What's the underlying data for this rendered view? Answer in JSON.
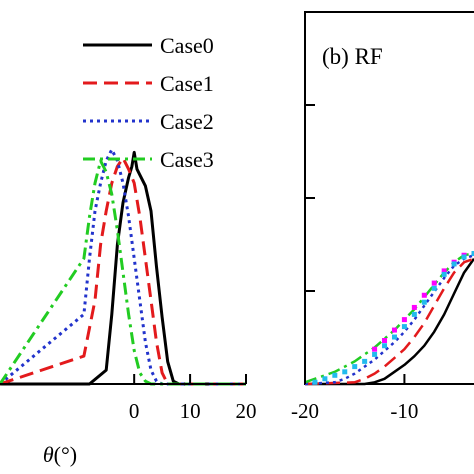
{
  "chart_data": [
    {
      "panel": "a",
      "type": "line",
      "xlabel_symbol": "θ",
      "xlabel_unit": "(°)",
      "xlim": [
        -24,
        20
      ],
      "ylim": [
        0,
        1
      ],
      "x_ticks": [
        "0",
        "10",
        "20"
      ],
      "grid": false,
      "legend_placement": "top-right",
      "series": [
        {
          "name": "Case0",
          "color": "#000000",
          "dash": "solid",
          "x": [
            -24,
            -8,
            -5,
            -4,
            -3,
            -2,
            -1,
            -0.4,
            0,
            0.5,
            1,
            2,
            3,
            4,
            5,
            6,
            7,
            8,
            20
          ],
          "y": [
            0,
            0.0,
            0.05,
            0.25,
            0.5,
            0.65,
            0.74,
            0.78,
            0.83,
            0.77,
            0.75,
            0.71,
            0.62,
            0.42,
            0.24,
            0.08,
            0.01,
            0,
            0
          ]
        },
        {
          "name": "Case1",
          "color": "#e31a1c",
          "dash": "dashed",
          "x": [
            -24,
            -9,
            -7,
            -6,
            -5,
            -4,
            -3,
            -2,
            -1,
            0,
            1,
            2,
            3,
            4,
            5,
            6,
            20
          ],
          "y": [
            0,
            0.1,
            0.3,
            0.5,
            0.62,
            0.72,
            0.78,
            0.81,
            0.77,
            0.72,
            0.6,
            0.45,
            0.3,
            0.15,
            0.04,
            0,
            0
          ]
        },
        {
          "name": "Case2",
          "color": "#2233cc",
          "dash": "dotted",
          "x": [
            -24,
            -9,
            -8,
            -7,
            -6,
            -5,
            -4,
            -3,
            -2,
            -1,
            0,
            1,
            2,
            3,
            4,
            5,
            20
          ],
          "y": [
            0,
            0.25,
            0.45,
            0.62,
            0.72,
            0.8,
            0.84,
            0.8,
            0.72,
            0.6,
            0.45,
            0.3,
            0.15,
            0.05,
            0.01,
            0,
            0
          ]
        },
        {
          "name": "Case3",
          "color": "#22cc22",
          "dash": "dashdot",
          "x": [
            -24,
            -9,
            -8,
            -7,
            -6,
            -5,
            -4,
            -3,
            -2,
            -1,
            0,
            1,
            2,
            3,
            20
          ],
          "y": [
            0,
            0.45,
            0.6,
            0.72,
            0.8,
            0.76,
            0.68,
            0.55,
            0.4,
            0.25,
            0.12,
            0.04,
            0.01,
            0,
            0
          ]
        }
      ]
    },
    {
      "panel": "b",
      "title": "(b) RF",
      "type": "line",
      "xlim": [
        -20,
        -3
      ],
      "ylim": [
        0,
        1
      ],
      "x_ticks": [
        "-20",
        "-10"
      ],
      "grid": false,
      "series": [
        {
          "color": "#000000",
          "dash": "solid",
          "x": [
            -20,
            -14,
            -13,
            -12,
            -11,
            -10,
            -9,
            -8,
            -7,
            -6,
            -5,
            -4,
            -3
          ],
          "y": [
            0,
            0,
            0.01,
            0.03,
            0.07,
            0.11,
            0.16,
            0.22,
            0.3,
            0.4,
            0.52,
            0.64,
            0.72
          ]
        },
        {
          "color": "#e31a1c",
          "dash": "dashed",
          "x": [
            -20,
            -15,
            -14,
            -13,
            -12,
            -11,
            -10,
            -9,
            -8,
            -7,
            -6,
            -5,
            -4,
            -3
          ],
          "y": [
            0,
            0.01,
            0.03,
            0.06,
            0.1,
            0.15,
            0.2,
            0.27,
            0.35,
            0.45,
            0.55,
            0.64,
            0.7,
            0.72
          ]
        },
        {
          "color": "#2233cc",
          "dash": "dotted",
          "x": [
            -20,
            -17,
            -16,
            -15,
            -14,
            -13,
            -12,
            -11,
            -10,
            -9,
            -8,
            -7,
            -6,
            -5,
            -4,
            -3
          ],
          "y": [
            0,
            0.01,
            0.03,
            0.06,
            0.1,
            0.14,
            0.19,
            0.24,
            0.3,
            0.37,
            0.45,
            0.53,
            0.61,
            0.68,
            0.72,
            0.74
          ]
        },
        {
          "color": "#22cc22",
          "dash": "dashdot",
          "x": [
            -20,
            -19,
            -18,
            -17,
            -16,
            -15,
            -14,
            -13,
            -12,
            -11,
            -10,
            -9,
            -8,
            -7,
            -6,
            -5,
            -4,
            -3
          ],
          "y": [
            0.01,
            0.03,
            0.05,
            0.07,
            0.1,
            0.13,
            0.17,
            0.21,
            0.26,
            0.31,
            0.37,
            0.43,
            0.5,
            0.57,
            0.64,
            0.7,
            0.74,
            0.75
          ]
        },
        {
          "color": "#ff00ff",
          "dash": "markers",
          "x": [
            -13,
            -12,
            -11,
            -10,
            -9,
            -8,
            -7,
            -6,
            -5,
            -4,
            -3
          ],
          "y": [
            0.2,
            0.25,
            0.31,
            0.37,
            0.44,
            0.51,
            0.58,
            0.65,
            0.7,
            0.74,
            0.75
          ]
        },
        {
          "color": "#22bbee",
          "dash": "markers",
          "x": [
            -19,
            -18,
            -17,
            -16,
            -15,
            -14,
            -13,
            -12,
            -11,
            -10,
            -9,
            -8,
            -7,
            -6,
            -5,
            -4,
            -3
          ],
          "y": [
            0.01,
            0.03,
            0.05,
            0.07,
            0.1,
            0.13,
            0.17,
            0.22,
            0.27,
            0.33,
            0.4,
            0.47,
            0.55,
            0.63,
            0.69,
            0.73,
            0.75
          ]
        }
      ]
    }
  ]
}
